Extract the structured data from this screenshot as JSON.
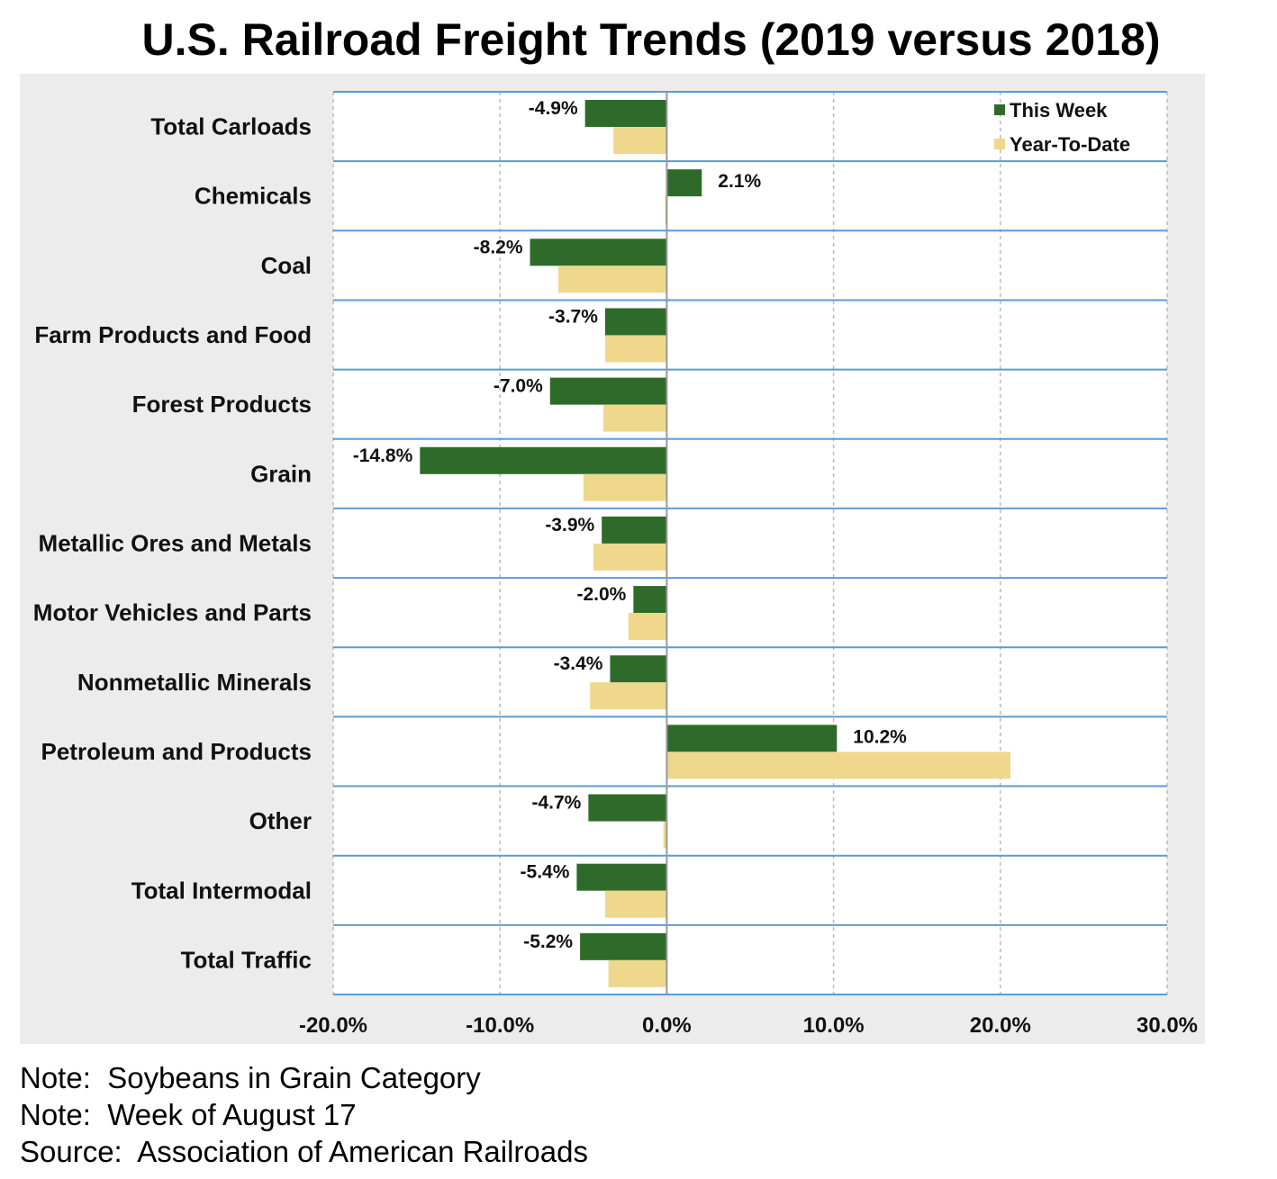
{
  "title": "U.S. Railroad Freight Trends (2019 versus 2018)",
  "notes": {
    "note1": "Note:  Soybeans in Grain Category",
    "note2": "Note:  Week of August 17",
    "source": "Source:  Association of American Railroads"
  },
  "colors": {
    "this_week": "#2e6b2a",
    "year_to_date": "#efd88b",
    "row_lines": "#5b9bd5",
    "grid": "#bbbbbb",
    "chart_bg": "#ececec",
    "plot_bg": "#ffffff"
  },
  "chart_data": {
    "type": "bar",
    "orientation": "horizontal",
    "categories": [
      "Total Carloads",
      "Chemicals",
      "Coal",
      "Farm Products and Food",
      "Forest Products",
      "Grain",
      "Metallic Ores and Metals",
      "Motor Vehicles and Parts",
      "Nonmetallic Minerals",
      "Petroleum and Products",
      "Other",
      "Total Intermodal",
      "Total Traffic"
    ],
    "series": [
      {
        "name": "This Week",
        "values": [
          -4.9,
          2.1,
          -8.2,
          -3.7,
          -7.0,
          -14.8,
          -3.9,
          -2.0,
          -3.4,
          10.2,
          -4.7,
          -5.4,
          -5.2
        ],
        "labels": [
          "-4.9%",
          "2.1%",
          "-8.2%",
          "-3.7%",
          "-7.0%",
          "-14.8%",
          "-3.9%",
          "-2.0%",
          "-3.4%",
          "10.2%",
          "-4.7%",
          "-5.4%",
          "-5.2%"
        ]
      },
      {
        "name": "Year-To-Date",
        "values": [
          -3.2,
          -0.1,
          -6.5,
          -3.7,
          -3.8,
          -5.0,
          -4.4,
          -2.3,
          -4.6,
          20.6,
          -0.2,
          -3.7,
          -3.5
        ]
      }
    ],
    "xlim": [
      -20,
      30
    ],
    "xticks": [
      "-20.0%",
      "-10.0%",
      "0.0%",
      "10.0%",
      "20.0%",
      "30.0%"
    ],
    "xtick_values": [
      -20,
      -10,
      0,
      10,
      20,
      30
    ],
    "grid": true,
    "legend_position": "top-right"
  }
}
